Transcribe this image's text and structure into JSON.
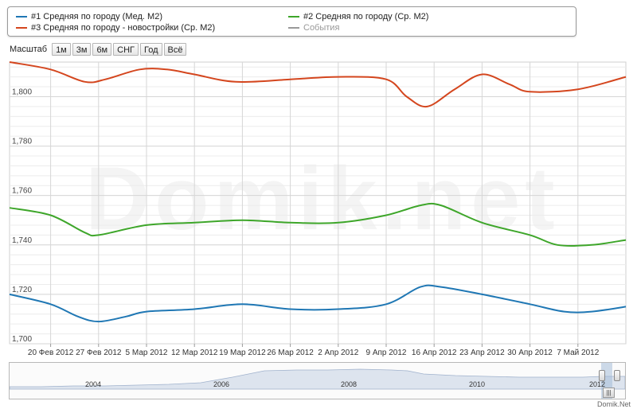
{
  "legend": {
    "items": [
      {
        "label": "#1 Средняя по городу (Мед. М2)",
        "color": "#1f77b4"
      },
      {
        "label": "#2 Средняя по городу (Ср. М2)",
        "color": "#3ea62a"
      },
      {
        "label": "#3 Средняя по городу - новостройки (Ср. М2)",
        "color": "#d4461e"
      },
      {
        "label": "События",
        "color": "#999999"
      }
    ]
  },
  "toolbar": {
    "scale_label": "Масштаб",
    "buttons": [
      "1м",
      "3м",
      "6м",
      "СНГ",
      "Год",
      "Всё"
    ]
  },
  "watermark": "Domik.net",
  "credit": "Domik.Net",
  "navigator": {
    "years": [
      "2004",
      "2006",
      "2008",
      "2010",
      "2012"
    ],
    "scroll_glyph": "|||"
  },
  "chart_data": {
    "type": "line",
    "title": "",
    "xlabel": "",
    "ylabel": "",
    "ylim": [
      1700,
      1814
    ],
    "yticks": [
      1700,
      1720,
      1740,
      1760,
      1780,
      1800
    ],
    "ytick_labels": [
      "1,700",
      "1,720",
      "1,740",
      "1,760",
      "1,780",
      "1,800"
    ],
    "xticks": [
      {
        "date": "2012-02-20",
        "label": "20 Фев 2012"
      },
      {
        "date": "2012-02-27",
        "label": "27 Фев 2012"
      },
      {
        "date": "2012-03-05",
        "label": "5 Мар 2012"
      },
      {
        "date": "2012-03-12",
        "label": "12 Мар 2012"
      },
      {
        "date": "2012-03-19",
        "label": "19 Мар 2012"
      },
      {
        "date": "2012-03-26",
        "label": "26 Мар 2012"
      },
      {
        "date": "2012-04-02",
        "label": "2 Апр 2012"
      },
      {
        "date": "2012-04-09",
        "label": "9 Апр 2012"
      },
      {
        "date": "2012-04-16",
        "label": "16 Апр 2012"
      },
      {
        "date": "2012-04-23",
        "label": "23 Апр 2012"
      },
      {
        "date": "2012-04-30",
        "label": "30 Апр 2012"
      },
      {
        "date": "2012-05-07",
        "label": "7 Май 2012"
      }
    ],
    "xlim": [
      "2012-02-14",
      "2012-05-14"
    ],
    "grid": true,
    "legend_position": "top",
    "series": [
      {
        "name": "#1 Средняя по городу (Мед. М2)",
        "color": "#1f77b4",
        "points": [
          [
            "2012-02-14",
            1720
          ],
          [
            "2012-02-20",
            1716
          ],
          [
            "2012-02-24",
            1711
          ],
          [
            "2012-02-27",
            1709
          ],
          [
            "2012-03-02",
            1711
          ],
          [
            "2012-03-05",
            1713
          ],
          [
            "2012-03-12",
            1714
          ],
          [
            "2012-03-19",
            1716
          ],
          [
            "2012-03-26",
            1714
          ],
          [
            "2012-04-02",
            1714
          ],
          [
            "2012-04-09",
            1716
          ],
          [
            "2012-04-14",
            1723
          ],
          [
            "2012-04-17",
            1723
          ],
          [
            "2012-04-23",
            1720
          ],
          [
            "2012-04-30",
            1716
          ],
          [
            "2012-05-05",
            1713
          ],
          [
            "2012-05-09",
            1713
          ],
          [
            "2012-05-14",
            1715
          ]
        ]
      },
      {
        "name": "#2 Средняя по городу (Ср. М2)",
        "color": "#3ea62a",
        "points": [
          [
            "2012-02-14",
            1755
          ],
          [
            "2012-02-20",
            1752
          ],
          [
            "2012-02-25",
            1745
          ],
          [
            "2012-02-27",
            1744
          ],
          [
            "2012-03-05",
            1748
          ],
          [
            "2012-03-12",
            1749
          ],
          [
            "2012-03-19",
            1750
          ],
          [
            "2012-03-26",
            1749
          ],
          [
            "2012-04-02",
            1749
          ],
          [
            "2012-04-09",
            1752
          ],
          [
            "2012-04-14",
            1756
          ],
          [
            "2012-04-17",
            1756
          ],
          [
            "2012-04-23",
            1749
          ],
          [
            "2012-04-30",
            1744
          ],
          [
            "2012-05-04",
            1740
          ],
          [
            "2012-05-09",
            1740
          ],
          [
            "2012-05-14",
            1742
          ]
        ]
      },
      {
        "name": "#3 Средняя по городу - новостройки (Ср. М2)",
        "color": "#d4461e",
        "points": [
          [
            "2012-02-14",
            1814
          ],
          [
            "2012-02-20",
            1811
          ],
          [
            "2012-02-25",
            1806
          ],
          [
            "2012-02-28",
            1807
          ],
          [
            "2012-03-04",
            1811
          ],
          [
            "2012-03-08",
            1811
          ],
          [
            "2012-03-12",
            1809
          ],
          [
            "2012-03-18",
            1806
          ],
          [
            "2012-03-26",
            1807
          ],
          [
            "2012-04-02",
            1808
          ],
          [
            "2012-04-09",
            1807
          ],
          [
            "2012-04-12",
            1800
          ],
          [
            "2012-04-15",
            1796
          ],
          [
            "2012-04-19",
            1803
          ],
          [
            "2012-04-23",
            1809
          ],
          [
            "2012-04-27",
            1805
          ],
          [
            "2012-04-30",
            1802
          ],
          [
            "2012-05-07",
            1803
          ],
          [
            "2012-05-14",
            1808
          ]
        ]
      }
    ]
  }
}
